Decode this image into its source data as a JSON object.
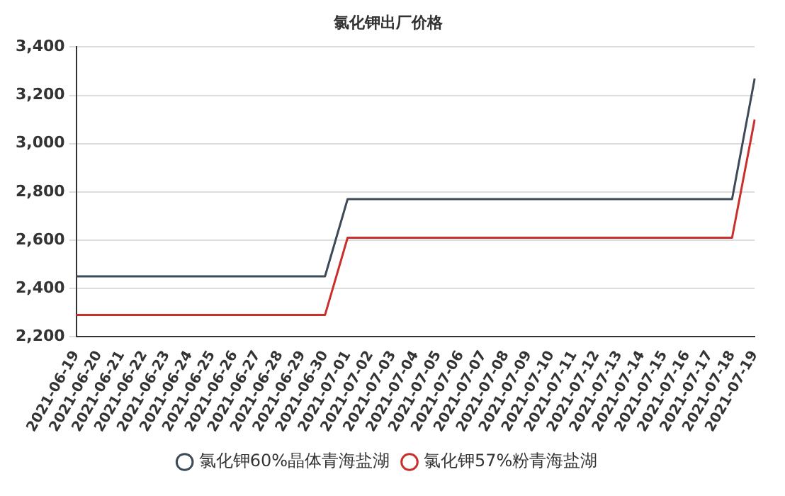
{
  "chart_data": {
    "type": "line",
    "title": "氯化钾出厂价格",
    "categories": [
      "2021-06-19",
      "2021-06-20",
      "2021-06-21",
      "2021-06-22",
      "2021-06-23",
      "2021-06-24",
      "2021-06-25",
      "2021-06-26",
      "2021-06-27",
      "2021-06-28",
      "2021-06-29",
      "2021-06-30",
      "2021-07-01",
      "2021-07-02",
      "2021-07-03",
      "2021-07-04",
      "2021-07-05",
      "2021-07-06",
      "2021-07-07",
      "2021-07-08",
      "2021-07-09",
      "2021-07-10",
      "2021-07-11",
      "2021-07-12",
      "2021-07-13",
      "2021-07-14",
      "2021-07-15",
      "2021-07-16",
      "2021-07-17",
      "2021-07-18",
      "2021-07-19"
    ],
    "series": [
      {
        "name": "氯化钾60%晶体青海盐湖",
        "color": "#3d4a57",
        "values": [
          2450,
          2450,
          2450,
          2450,
          2450,
          2450,
          2450,
          2450,
          2450,
          2450,
          2450,
          2450,
          2770,
          2770,
          2770,
          2770,
          2770,
          2770,
          2770,
          2770,
          2770,
          2770,
          2770,
          2770,
          2770,
          2770,
          2770,
          2770,
          2770,
          2770,
          3270
        ]
      },
      {
        "name": "氯化钾57%粉青海盐湖",
        "color": "#c9302c",
        "values": [
          2290,
          2290,
          2290,
          2290,
          2290,
          2290,
          2290,
          2290,
          2290,
          2290,
          2290,
          2290,
          2610,
          2610,
          2610,
          2610,
          2610,
          2610,
          2610,
          2610,
          2610,
          2610,
          2610,
          2610,
          2610,
          2610,
          2610,
          2610,
          2610,
          2610,
          3100
        ]
      }
    ],
    "ylim": [
      2200,
      3400
    ],
    "yticks": [
      {
        "value": 2200,
        "label": "2,200"
      },
      {
        "value": 2400,
        "label": "2,400"
      },
      {
        "value": 2600,
        "label": "2,600"
      },
      {
        "value": 2800,
        "label": "2,800"
      },
      {
        "value": 3000,
        "label": "3,000"
      },
      {
        "value": 3200,
        "label": "3,200"
      },
      {
        "value": 3400,
        "label": "3,400"
      }
    ],
    "grid": "y",
    "legend": "bottom",
    "marker": "none",
    "line_style": "solid"
  }
}
